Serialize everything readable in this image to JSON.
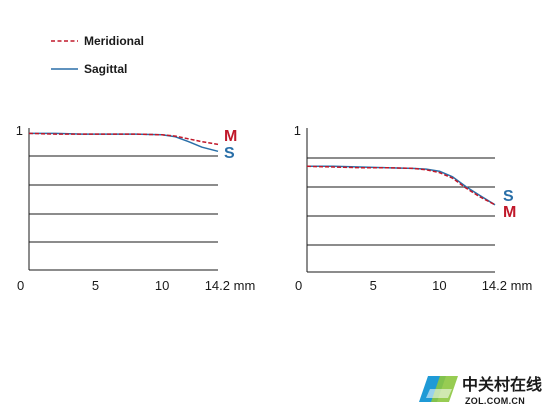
{
  "legend": {
    "items": [
      {
        "label": "Meridional",
        "style": "dashed",
        "color": "#c0182a"
      },
      {
        "label": "Sagittal",
        "style": "solid",
        "color": "#2a6fa8"
      }
    ]
  },
  "colors": {
    "meridional": "#c0182a",
    "sagittal": "#2a6fa8",
    "axis": "#1a1a1a"
  },
  "watermark": {
    "text": "中关村在线",
    "url": "ZOL.COM.CN",
    "icon": "zol-logo-icon"
  },
  "chart_data": [
    {
      "type": "line",
      "xlim": [
        0,
        14.2
      ],
      "ylim": [
        0,
        1
      ],
      "x_ticks": [
        "0",
        "5",
        "10",
        "14.2 mm"
      ],
      "y_ticks": [
        "1"
      ],
      "grid": "horizontal",
      "series": [
        {
          "name": "Meridional",
          "short": "M",
          "style": "dashed",
          "x": [
            0,
            2,
            4,
            6,
            8,
            10,
            11,
            12,
            13,
            14.2
          ],
          "y": [
            0.99,
            0.985,
            0.985,
            0.985,
            0.985,
            0.98,
            0.97,
            0.95,
            0.93,
            0.91
          ]
        },
        {
          "name": "Sagittal",
          "short": "S",
          "style": "solid",
          "x": [
            0,
            2,
            4,
            6,
            8,
            10,
            11,
            12,
            13,
            14.2
          ],
          "y": [
            0.99,
            0.99,
            0.985,
            0.985,
            0.985,
            0.98,
            0.965,
            0.93,
            0.89,
            0.86
          ]
        }
      ]
    },
    {
      "type": "line",
      "xlim": [
        0,
        14.2
      ],
      "ylim": [
        0,
        1
      ],
      "x_ticks": [
        "0",
        "5",
        "10",
        "14.2 mm"
      ],
      "y_ticks": [
        "1"
      ],
      "grid": "horizontal",
      "series": [
        {
          "name": "Meridional",
          "short": "M",
          "style": "dashed",
          "x": [
            0,
            2,
            4,
            6,
            8,
            9,
            10,
            11,
            12,
            13,
            14.2
          ],
          "y": [
            0.755,
            0.75,
            0.745,
            0.745,
            0.74,
            0.73,
            0.71,
            0.67,
            0.6,
            0.54,
            0.48
          ]
        },
        {
          "name": "Sagittal",
          "short": "S",
          "style": "solid",
          "x": [
            0,
            2,
            4,
            6,
            8,
            9,
            10,
            11,
            12,
            13,
            14.2
          ],
          "y": [
            0.755,
            0.755,
            0.75,
            0.745,
            0.74,
            0.735,
            0.72,
            0.68,
            0.61,
            0.55,
            0.48
          ]
        }
      ]
    }
  ]
}
